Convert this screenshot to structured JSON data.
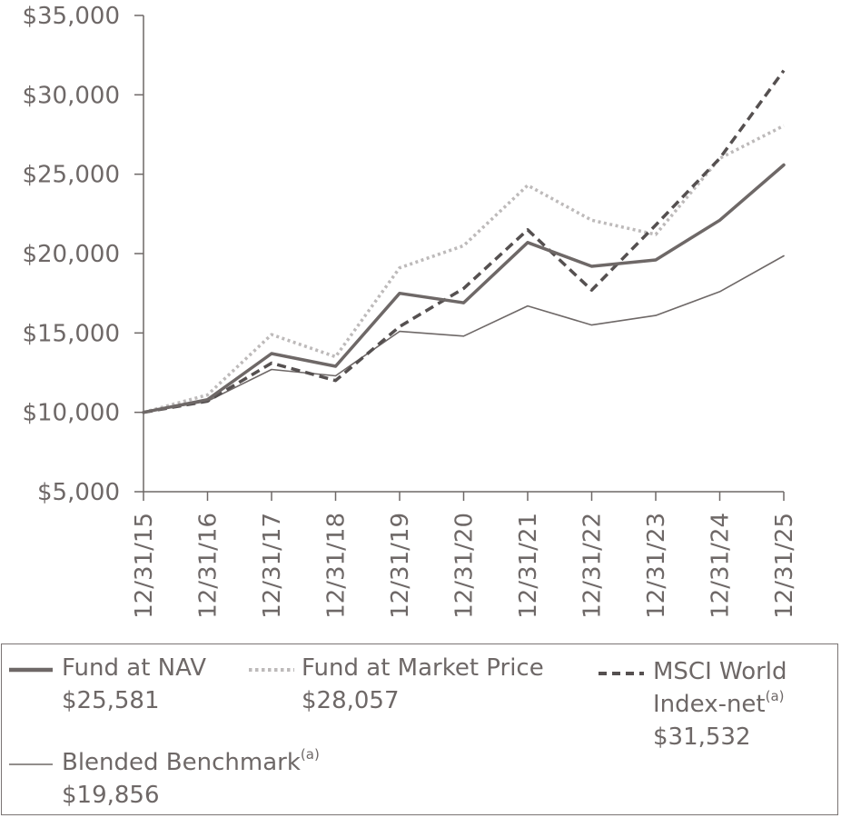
{
  "chart_data": {
    "type": "line",
    "title": "",
    "xlabel": "",
    "ylabel": "",
    "categories": [
      "12/31/15",
      "12/31/16",
      "12/31/17",
      "12/31/18",
      "12/31/19",
      "12/31/20",
      "12/31/21",
      "12/31/22",
      "12/31/23",
      "12/31/24",
      "12/31/25"
    ],
    "ylim": [
      5000,
      35000
    ],
    "yticks": [
      5000,
      10000,
      15000,
      20000,
      25000,
      30000,
      35000
    ],
    "ytick_labels": [
      "$5,000",
      "$10,000",
      "$15,000",
      "$20,000",
      "$25,000",
      "$30,000",
      "$35,000"
    ],
    "grid": false,
    "legend_position": "bottom",
    "series": [
      {
        "name": "Fund at NAV",
        "style": "solid-thick",
        "color": "#6e6867",
        "final_value": "$25,581",
        "values": [
          10000,
          10800,
          13700,
          12900,
          17500,
          16900,
          20700,
          19200,
          19600,
          22100,
          25581
        ]
      },
      {
        "name": "Fund at Market Price",
        "style": "dotted",
        "color": "#bdbaba",
        "final_value": "$28,057",
        "values": [
          10000,
          11100,
          14900,
          13500,
          19100,
          20500,
          24300,
          22100,
          21200,
          26000,
          28057
        ]
      },
      {
        "name": "MSCI World Index-net",
        "style": "dashed",
        "color": "#555050",
        "final_value": "$31,532",
        "footnote": "(a)",
        "values": [
          10000,
          10700,
          13100,
          12000,
          15400,
          17800,
          21500,
          17700,
          21800,
          26000,
          31532
        ]
      },
      {
        "name": "Blended Benchmark",
        "style": "solid-thin",
        "color": "#6e6867",
        "final_value": "$19,856",
        "footnote": "(a)",
        "values": [
          10000,
          10700,
          12700,
          12300,
          15100,
          14800,
          16700,
          15500,
          16100,
          17600,
          19856
        ]
      }
    ]
  },
  "legend": {
    "nav": {
      "label": "Fund at NAV",
      "value": "$25,581"
    },
    "market": {
      "label": "Fund at Market Price",
      "value": "$28,057"
    },
    "msci": {
      "label_line1": "MSCI World",
      "label_line2": "Index-net",
      "footnote": "(a)",
      "value": "$31,532"
    },
    "blended": {
      "label": "Blended Benchmark",
      "footnote": "(a)",
      "value": "$19,856"
    }
  }
}
